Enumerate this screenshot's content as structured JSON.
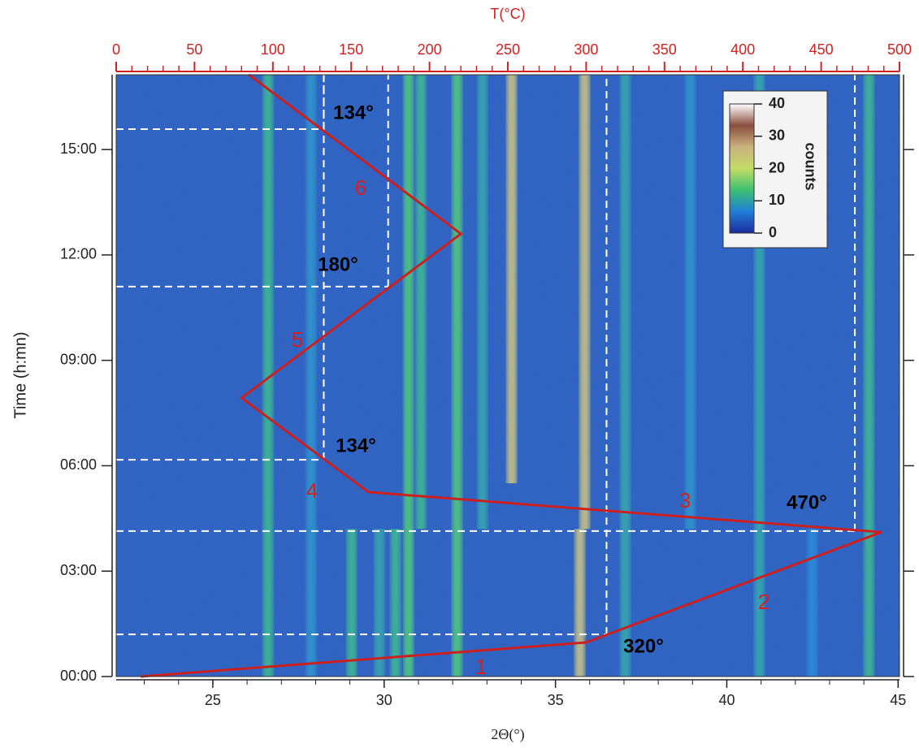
{
  "chart_data": {
    "type": "heatmap",
    "x_label": "2Θ(°)",
    "x2_label": "T(°C)",
    "y_label": "Time (h:mn)",
    "xlim": [
      22.18,
      45.04
    ],
    "xticks": [
      25,
      30,
      35,
      40,
      45
    ],
    "x2lim": [
      0,
      500
    ],
    "x2ticks": [
      0,
      50,
      100,
      150,
      200,
      250,
      300,
      350,
      400,
      450,
      500
    ],
    "ylim": [
      0,
      17.13
    ],
    "yticks": [
      {
        "value": 0,
        "label": "00:00"
      },
      {
        "value": 3,
        "label": "03:00"
      },
      {
        "value": 6,
        "label": "06:00"
      },
      {
        "value": 9,
        "label": "09:00"
      },
      {
        "value": 12,
        "label": "12:00"
      },
      {
        "value": 15,
        "label": "15:00"
      }
    ],
    "axis_color_x2": "#d42020",
    "colormap": [
      "#1b2a9c",
      "#1f7fd8",
      "#3cc070",
      "#c4dc66",
      "#c9b27e",
      "#8a4f3e",
      "#ffffff"
    ],
    "colorbar": {
      "label": "counts",
      "lim": [
        0,
        40
      ],
      "ticks": [
        0,
        10,
        20,
        30,
        40
      ]
    },
    "peaks": [
      {
        "two_theta": 26.61,
        "start": 0,
        "end": 17.13,
        "counts": 12
      },
      {
        "two_theta": 27.87,
        "start": 0,
        "end": 17.13,
        "counts": 8
      },
      {
        "two_theta": 29.05,
        "start": 0,
        "end": 4.2,
        "counts": 12
      },
      {
        "two_theta": 29.86,
        "start": 0,
        "end": 4.2,
        "counts": 10
      },
      {
        "two_theta": 30.33,
        "start": 0,
        "end": 4.2,
        "counts": 12
      },
      {
        "two_theta": 30.71,
        "start": 0,
        "end": 17.13,
        "counts": 14
      },
      {
        "two_theta": 31.07,
        "start": 4.2,
        "end": 17.13,
        "counts": 12
      },
      {
        "two_theta": 32.13,
        "start": 0,
        "end": 17.13,
        "counts": 14
      },
      {
        "two_theta": 32.87,
        "start": 4.2,
        "end": 17.13,
        "counts": 10
      },
      {
        "two_theta": 33.72,
        "start": 5.5,
        "end": 17.13,
        "counts": 25
      },
      {
        "two_theta": 35.71,
        "start": 0,
        "end": 4.2,
        "counts": 25
      },
      {
        "two_theta": 35.85,
        "start": 4.2,
        "end": 17.13,
        "counts": 25
      },
      {
        "two_theta": 37.04,
        "start": 0,
        "end": 17.13,
        "counts": 10
      },
      {
        "two_theta": 38.93,
        "start": 4.2,
        "end": 17.13,
        "counts": 8
      },
      {
        "two_theta": 40.95,
        "start": 0,
        "end": 17.13,
        "counts": 10
      },
      {
        "two_theta": 42.49,
        "start": 0,
        "end": 4.2,
        "counts": 7
      },
      {
        "two_theta": 44.15,
        "start": 0,
        "end": 17.13,
        "counts": 12
      }
    ],
    "series": [
      {
        "color": "#cc2020",
        "axis": "x2",
        "x": [
          15.6,
          299.9,
          488.6,
          161,
          80,
          220,
          84.7
        ],
        "values": [
          0,
          0.97,
          4.11,
          5.25,
          7.93,
          12.6,
          17.13
        ]
      }
    ],
    "guides": [
      {
        "temperature": 313,
        "time": 1.2
      },
      {
        "temperature": 471.5,
        "time": 4.14
      },
      {
        "temperature": 132.5,
        "time": 6.17
      },
      {
        "temperature": 173.6,
        "time": 11.1
      },
      {
        "temperature": 132.5,
        "time": 15.58
      }
    ],
    "annotations": [
      "134°",
      "180°",
      "134°",
      "470°",
      "320°"
    ],
    "segment_labels": [
      "1",
      "2",
      "3",
      "4",
      "5",
      "6"
    ]
  }
}
